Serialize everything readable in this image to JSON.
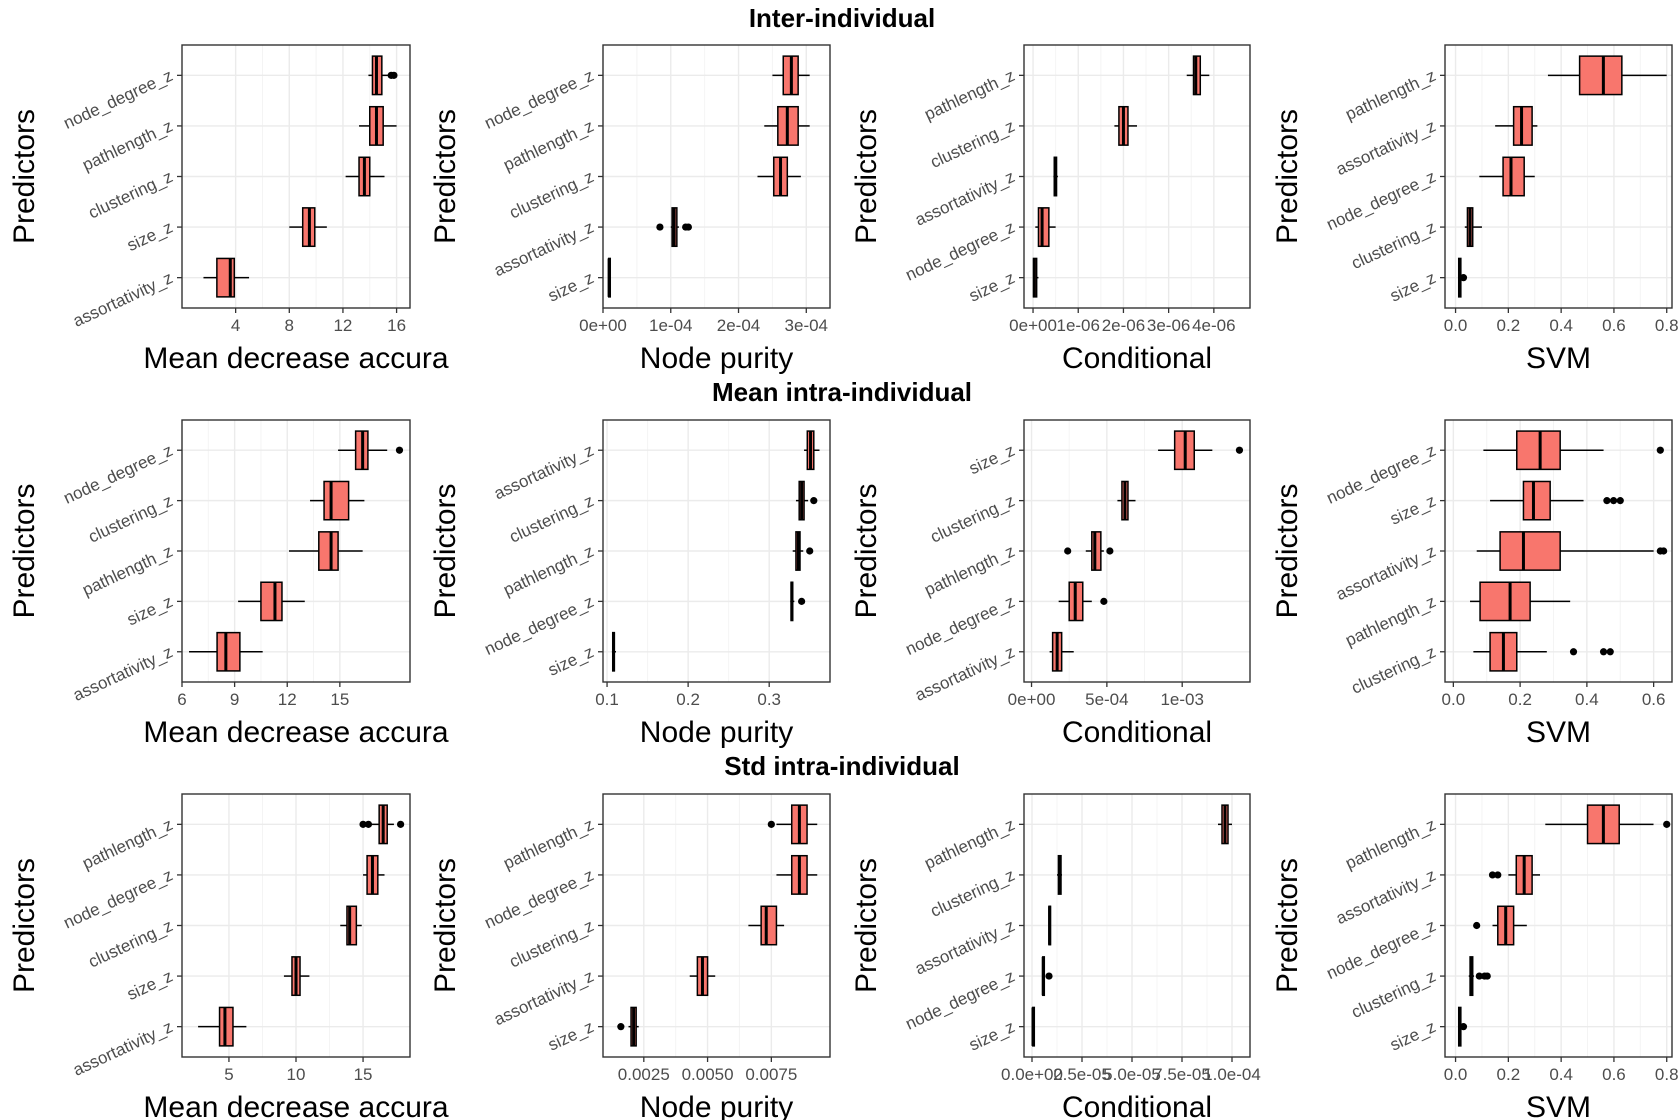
{
  "colors": {
    "box_fill": "#F8766D",
    "panel_border": "#333333",
    "grid": "#ebebeb"
  },
  "rows": [
    {
      "title": "Inter-individual"
    },
    {
      "title": "Mean intra-individual"
    },
    {
      "title": "Std intra-individual"
    }
  ],
  "chart_data": [
    {
      "type": "boxplot",
      "row": 0,
      "col": 0,
      "orientation": "horizontal",
      "xlabel": "Mean decrease accura",
      "ylabel": "Predictors",
      "xlim": [
        0,
        17
      ],
      "ticks": [
        {
          "v": 4,
          "label": "4"
        },
        {
          "v": 8,
          "label": "8"
        },
        {
          "v": 12,
          "label": "12"
        },
        {
          "v": 16,
          "label": "16"
        }
      ],
      "categories": [
        "node_degree_z",
        "pathlength_z",
        "clustering_z",
        "size_z",
        "assortativity_z"
      ],
      "boxes": [
        {
          "min": 13.9,
          "q1": 14.2,
          "median": 14.5,
          "q3": 14.9,
          "max": 15.8,
          "outliers": [
            15.6,
            15.8
          ]
        },
        {
          "min": 13.2,
          "q1": 14.0,
          "median": 14.5,
          "q3": 15.0,
          "max": 16.0,
          "outliers": []
        },
        {
          "min": 12.2,
          "q1": 13.2,
          "median": 13.6,
          "q3": 14.0,
          "max": 15.1,
          "outliers": []
        },
        {
          "min": 8.0,
          "q1": 9.0,
          "median": 9.5,
          "q3": 9.9,
          "max": 10.8,
          "outliers": []
        },
        {
          "min": 1.6,
          "q1": 2.6,
          "median": 3.6,
          "q3": 3.9,
          "max": 5.0,
          "outliers": []
        }
      ]
    },
    {
      "type": "boxplot",
      "row": 0,
      "col": 1,
      "orientation": "horizontal",
      "xlabel": "Node purity",
      "ylabel": "Predictors",
      "xlim": [
        0,
        0.000335
      ],
      "ticks": [
        {
          "v": 0,
          "label": "0e+00"
        },
        {
          "v": 0.0001,
          "label": "1e-04"
        },
        {
          "v": 0.0002,
          "label": "2e-04"
        },
        {
          "v": 0.0003,
          "label": "3e-04"
        }
      ],
      "categories": [
        "node_degree_z",
        "pathlength_z",
        "clustering_z",
        "assortativity_z",
        "size_z"
      ],
      "boxes": [
        {
          "min": 0.00025,
          "q1": 0.000266,
          "median": 0.000278,
          "q3": 0.000288,
          "max": 0.000305,
          "outliers": []
        },
        {
          "min": 0.000238,
          "q1": 0.000258,
          "median": 0.000272,
          "q3": 0.000288,
          "max": 0.000305,
          "outliers": []
        },
        {
          "min": 0.000228,
          "q1": 0.000252,
          "median": 0.000262,
          "q3": 0.000272,
          "max": 0.000292,
          "outliers": []
        },
        {
          "min": 0.0001,
          "q1": 0.000102,
          "median": 0.000105,
          "q3": 0.000109,
          "max": 0.000112,
          "outliers": [
            8.4e-05,
            0.000122,
            0.000126
          ]
        },
        {
          "min": 7.5e-06,
          "q1": 8.5e-06,
          "median": 9e-06,
          "q3": 9.5e-06,
          "max": 1.05e-05,
          "outliers": []
        }
      ]
    },
    {
      "type": "boxplot",
      "row": 0,
      "col": 2,
      "orientation": "horizontal",
      "xlabel": "Conditional",
      "ylabel": "Predictors",
      "xlim": [
        -2e-07,
        4.8e-06
      ],
      "ticks": [
        {
          "v": 0,
          "label": "0e+00"
        },
        {
          "v": 1e-06,
          "label": "1e-06"
        },
        {
          "v": 2e-06,
          "label": "2e-06"
        },
        {
          "v": 3e-06,
          "label": "3e-06"
        },
        {
          "v": 4e-06,
          "label": "4e-06"
        }
      ],
      "categories": [
        "pathlength_z",
        "clustering_z",
        "assortativity_z",
        "node_degree_z",
        "size_z"
      ],
      "boxes": [
        {
          "min": 3.4e-06,
          "q1": 3.55e-06,
          "median": 3.6e-06,
          "q3": 3.7e-06,
          "max": 3.9e-06,
          "outliers": []
        },
        {
          "min": 1.8e-06,
          "q1": 1.9e-06,
          "median": 2e-06,
          "q3": 2.1e-06,
          "max": 2.3e-06,
          "outliers": []
        },
        {
          "min": 4.5e-07,
          "q1": 4.7e-07,
          "median": 4.9e-07,
          "q3": 5.2e-07,
          "max": 5.5e-07,
          "outliers": []
        },
        {
          "min": 5e-08,
          "q1": 1.2e-07,
          "median": 2e-07,
          "q3": 3.5e-07,
          "max": 5e-07,
          "outliers": []
        },
        {
          "min": 0.0,
          "q1": 1e-08,
          "median": 3e-08,
          "q3": 8e-08,
          "max": 1.2e-07,
          "outliers": []
        }
      ]
    },
    {
      "type": "boxplot",
      "row": 0,
      "col": 3,
      "orientation": "horizontal",
      "xlabel": "SVM",
      "ylabel": "Predictors",
      "xlim": [
        -0.04,
        0.82
      ],
      "ticks": [
        {
          "v": 0,
          "label": "0.0"
        },
        {
          "v": 0.2,
          "label": "0.2"
        },
        {
          "v": 0.4,
          "label": "0.4"
        },
        {
          "v": 0.6,
          "label": "0.6"
        },
        {
          "v": 0.8,
          "label": "0.8"
        }
      ],
      "categories": [
        "pathlength_z",
        "assortativity_z",
        "node_degree_z",
        "clustering_z",
        "size_z"
      ],
      "boxes": [
        {
          "min": 0.35,
          "q1": 0.47,
          "median": 0.56,
          "q3": 0.63,
          "max": 0.8,
          "outliers": []
        },
        {
          "min": 0.15,
          "q1": 0.22,
          "median": 0.25,
          "q3": 0.29,
          "max": 0.31,
          "outliers": []
        },
        {
          "min": 0.09,
          "q1": 0.18,
          "median": 0.21,
          "q3": 0.26,
          "max": 0.3,
          "outliers": []
        },
        {
          "min": 0.035,
          "q1": 0.045,
          "median": 0.055,
          "q3": 0.065,
          "max": 0.1,
          "outliers": []
        },
        {
          "min": 0.01,
          "q1": 0.012,
          "median": 0.015,
          "q3": 0.02,
          "max": 0.03,
          "outliers": [
            0.03
          ]
        }
      ]
    },
    {
      "type": "boxplot",
      "row": 1,
      "col": 0,
      "orientation": "horizontal",
      "xlabel": "Mean decrease accura",
      "ylabel": "Predictors",
      "xlim": [
        6,
        19
      ],
      "ticks": [
        {
          "v": 6,
          "label": "6"
        },
        {
          "v": 9,
          "label": "9"
        },
        {
          "v": 12,
          "label": "12"
        },
        {
          "v": 15,
          "label": "15"
        }
      ],
      "categories": [
        "node_degree_z",
        "clustering_z",
        "pathlength_z",
        "size_z",
        "assortativity_z"
      ],
      "boxes": [
        {
          "min": 14.9,
          "q1": 15.9,
          "median": 16.3,
          "q3": 16.6,
          "max": 17.7,
          "outliers": [
            18.4
          ]
        },
        {
          "min": 13.3,
          "q1": 14.1,
          "median": 14.5,
          "q3": 15.5,
          "max": 16.4,
          "outliers": []
        },
        {
          "min": 12.1,
          "q1": 13.8,
          "median": 14.5,
          "q3": 14.9,
          "max": 16.3,
          "outliers": []
        },
        {
          "min": 9.2,
          "q1": 10.5,
          "median": 11.3,
          "q3": 11.7,
          "max": 13.0,
          "outliers": []
        },
        {
          "min": 6.4,
          "q1": 8.0,
          "median": 8.5,
          "q3": 9.3,
          "max": 10.6,
          "outliers": []
        }
      ]
    },
    {
      "type": "boxplot",
      "row": 1,
      "col": 1,
      "orientation": "horizontal",
      "xlabel": "Node purity",
      "ylabel": "Predictors",
      "xlim": [
        0.095,
        0.375
      ],
      "ticks": [
        {
          "v": 0.1,
          "label": "0.1"
        },
        {
          "v": 0.2,
          "label": "0.2"
        },
        {
          "v": 0.3,
          "label": "0.3"
        }
      ],
      "categories": [
        "assortativity_z",
        "clustering_z",
        "pathlength_z",
        "node_degree_z",
        "size_z"
      ],
      "boxes": [
        {
          "min": 0.343,
          "q1": 0.347,
          "median": 0.351,
          "q3": 0.355,
          "max": 0.362,
          "outliers": []
        },
        {
          "min": 0.333,
          "q1": 0.337,
          "median": 0.34,
          "q3": 0.343,
          "max": 0.348,
          "outliers": [
            0.355
          ]
        },
        {
          "min": 0.329,
          "q1": 0.333,
          "median": 0.336,
          "q3": 0.338,
          "max": 0.342,
          "outliers": [
            0.35
          ]
        },
        {
          "min": 0.326,
          "q1": 0.327,
          "median": 0.328,
          "q3": 0.329,
          "max": 0.331,
          "outliers": [
            0.34
          ]
        },
        {
          "min": 0.106,
          "q1": 0.107,
          "median": 0.108,
          "q3": 0.109,
          "max": 0.111,
          "outliers": []
        }
      ]
    },
    {
      "type": "boxplot",
      "row": 1,
      "col": 2,
      "orientation": "horizontal",
      "xlabel": "Conditional",
      "ylabel": "Predictors",
      "xlim": [
        -5e-05,
        0.00145
      ],
      "ticks": [
        {
          "v": 0,
          "label": "0e+00"
        },
        {
          "v": 0.0005,
          "label": "5e-04"
        },
        {
          "v": 0.001,
          "label": "1e-03"
        }
      ],
      "categories": [
        "size_z",
        "clustering_z",
        "pathlength_z",
        "node_degree_z",
        "assortativity_z"
      ],
      "boxes": [
        {
          "min": 0.00084,
          "q1": 0.00095,
          "median": 0.00102,
          "q3": 0.00108,
          "max": 0.0012,
          "outliers": [
            0.00138
          ]
        },
        {
          "min": 0.00057,
          "q1": 0.0006,
          "median": 0.00062,
          "q3": 0.00064,
          "max": 0.00069,
          "outliers": []
        },
        {
          "min": 0.00036,
          "q1": 0.0004,
          "median": 0.00042,
          "q3": 0.00046,
          "max": 0.00048,
          "outliers": [
            0.00024,
            0.00052
          ]
        },
        {
          "min": 0.00018,
          "q1": 0.00025,
          "median": 0.00029,
          "q3": 0.00034,
          "max": 0.0004,
          "outliers": [
            0.00048
          ]
        },
        {
          "min": 0.00012,
          "q1": 0.00014,
          "median": 0.00017,
          "q3": 0.0002,
          "max": 0.00028,
          "outliers": []
        }
      ]
    },
    {
      "type": "boxplot",
      "row": 1,
      "col": 3,
      "orientation": "horizontal",
      "xlabel": "SVM",
      "ylabel": "Predictors",
      "xlim": [
        -0.025,
        0.655
      ],
      "ticks": [
        {
          "v": 0,
          "label": "0.0"
        },
        {
          "v": 0.2,
          "label": "0.2"
        },
        {
          "v": 0.4,
          "label": "0.4"
        },
        {
          "v": 0.6,
          "label": "0.6"
        }
      ],
      "categories": [
        "node_degree_z",
        "size_z",
        "assortativity_z",
        "pathlength_z",
        "clustering_z"
      ],
      "boxes": [
        {
          "min": 0.09,
          "q1": 0.19,
          "median": 0.26,
          "q3": 0.32,
          "max": 0.45,
          "outliers": [
            0.62
          ]
        },
        {
          "min": 0.11,
          "q1": 0.21,
          "median": 0.24,
          "q3": 0.29,
          "max": 0.39,
          "outliers": [
            0.46,
            0.48,
            0.5
          ]
        },
        {
          "min": 0.07,
          "q1": 0.14,
          "median": 0.21,
          "q3": 0.32,
          "max": 0.6,
          "outliers": [
            0.62,
            0.63
          ]
        },
        {
          "min": 0.05,
          "q1": 0.08,
          "median": 0.17,
          "q3": 0.23,
          "max": 0.35,
          "outliers": []
        },
        {
          "min": 0.06,
          "q1": 0.11,
          "median": 0.15,
          "q3": 0.19,
          "max": 0.28,
          "outliers": [
            0.36,
            0.45,
            0.47
          ]
        }
      ]
    },
    {
      "type": "boxplot",
      "row": 2,
      "col": 0,
      "orientation": "horizontal",
      "xlabel": "Mean decrease accura",
      "ylabel": "Predictors",
      "xlim": [
        1.5,
        18.5
      ],
      "ticks": [
        {
          "v": 5,
          "label": "5"
        },
        {
          "v": 10,
          "label": "10"
        },
        {
          "v": 15,
          "label": "15"
        }
      ],
      "categories": [
        "pathlength_z",
        "node_degree_z",
        "clustering_z",
        "size_z",
        "assortativity_z"
      ],
      "boxes": [
        {
          "min": 15.6,
          "q1": 16.2,
          "median": 16.5,
          "q3": 16.8,
          "max": 17.3,
          "outliers": [
            15.0,
            15.4,
            17.8
          ]
        },
        {
          "min": 15.0,
          "q1": 15.3,
          "median": 15.7,
          "q3": 16.1,
          "max": 16.6,
          "outliers": []
        },
        {
          "min": 13.3,
          "q1": 13.8,
          "median": 14.0,
          "q3": 14.5,
          "max": 14.9,
          "outliers": []
        },
        {
          "min": 9.1,
          "q1": 9.7,
          "median": 10.0,
          "q3": 10.3,
          "max": 11.0,
          "outliers": []
        },
        {
          "min": 2.7,
          "q1": 4.3,
          "median": 4.7,
          "q3": 5.3,
          "max": 6.3,
          "outliers": []
        }
      ]
    },
    {
      "type": "boxplot",
      "row": 2,
      "col": 1,
      "orientation": "horizontal",
      "xlabel": "Node purity",
      "ylabel": "Predictors",
      "xlim": [
        0.0009,
        0.0098
      ],
      "ticks": [
        {
          "v": 0.0025,
          "label": "0.0025"
        },
        {
          "v": 0.005,
          "label": "0.0050"
        },
        {
          "v": 0.0075,
          "label": "0.0075"
        }
      ],
      "categories": [
        "pathlength_z",
        "node_degree_z",
        "clustering_z",
        "assortativity_z",
        "size_z"
      ],
      "boxes": [
        {
          "min": 0.0077,
          "q1": 0.0083,
          "median": 0.0086,
          "q3": 0.0089,
          "max": 0.0093,
          "outliers": [
            0.0075
          ]
        },
        {
          "min": 0.0077,
          "q1": 0.0083,
          "median": 0.0086,
          "q3": 0.0089,
          "max": 0.0093,
          "outliers": []
        },
        {
          "min": 0.0066,
          "q1": 0.0071,
          "median": 0.0073,
          "q3": 0.0077,
          "max": 0.008,
          "outliers": []
        },
        {
          "min": 0.0043,
          "q1": 0.0046,
          "median": 0.0048,
          "q3": 0.005,
          "max": 0.0053,
          "outliers": []
        },
        {
          "min": 0.0019,
          "q1": 0.002,
          "median": 0.0021,
          "q3": 0.0022,
          "max": 0.0023,
          "outliers": [
            0.0016
          ]
        }
      ]
    },
    {
      "type": "boxplot",
      "row": 2,
      "col": 2,
      "orientation": "horizontal",
      "xlabel": "Conditional",
      "ylabel": "Predictors",
      "xlim": [
        -4e-06,
        0.000109
      ],
      "ticks": [
        {
          "v": 0,
          "label": "0.0e+00"
        },
        {
          "v": 2.5e-05,
          "label": "2.5e-05"
        },
        {
          "v": 5e-05,
          "label": "5.0e-05"
        },
        {
          "v": 7.5e-05,
          "label": "7.5e-05"
        },
        {
          "v": 0.0001,
          "label": "1.0e-04"
        }
      ],
      "categories": [
        "pathlength_z",
        "clustering_z",
        "assortativity_z",
        "node_degree_z",
        "size_z"
      ],
      "boxes": [
        {
          "min": 9.3e-05,
          "q1": 9.5e-05,
          "median": 9.65e-05,
          "q3": 9.8e-05,
          "max": 0.0001,
          "outliers": []
        },
        {
          "min": 1.25e-05,
          "q1": 1.32e-05,
          "median": 1.38e-05,
          "q3": 1.45e-05,
          "max": 1.5e-05,
          "outliers": []
        },
        {
          "min": 8.3e-06,
          "q1": 8.5e-06,
          "median": 8.8e-06,
          "q3": 9e-06,
          "max": 9.2e-06,
          "outliers": []
        },
        {
          "min": 5.2e-06,
          "q1": 5.4e-06,
          "median": 5.6e-06,
          "q3": 5.9e-06,
          "max": 6.2e-06,
          "outliers": [
            8.5e-06
          ]
        },
        {
          "min": 3e-07,
          "q1": 4e-07,
          "median": 5e-07,
          "q3": 6e-07,
          "max": 8e-07,
          "outliers": []
        }
      ]
    },
    {
      "type": "boxplot",
      "row": 2,
      "col": 3,
      "orientation": "horizontal",
      "xlabel": "SVM",
      "ylabel": "Predictors",
      "xlim": [
        -0.04,
        0.82
      ],
      "ticks": [
        {
          "v": 0,
          "label": "0.0"
        },
        {
          "v": 0.2,
          "label": "0.2"
        },
        {
          "v": 0.4,
          "label": "0.4"
        },
        {
          "v": 0.6,
          "label": "0.6"
        },
        {
          "v": 0.8,
          "label": "0.8"
        }
      ],
      "categories": [
        "pathlength_z",
        "assortativity_z",
        "node_degree_z",
        "clustering_z",
        "size_z"
      ],
      "boxes": [
        {
          "min": 0.34,
          "q1": 0.5,
          "median": 0.56,
          "q3": 0.62,
          "max": 0.75,
          "outliers": [
            0.8
          ]
        },
        {
          "min": 0.2,
          "q1": 0.23,
          "median": 0.26,
          "q3": 0.29,
          "max": 0.32,
          "outliers": [
            0.14,
            0.16
          ]
        },
        {
          "min": 0.14,
          "q1": 0.16,
          "median": 0.19,
          "q3": 0.22,
          "max": 0.27,
          "outliers": [
            0.08
          ]
        },
        {
          "min": 0.05,
          "q1": 0.055,
          "median": 0.06,
          "q3": 0.065,
          "max": 0.07,
          "outliers": [
            0.09,
            0.11,
            0.12
          ]
        },
        {
          "min": 0.01,
          "q1": 0.012,
          "median": 0.015,
          "q3": 0.02,
          "max": 0.025,
          "outliers": [
            0.03
          ]
        }
      ]
    }
  ]
}
